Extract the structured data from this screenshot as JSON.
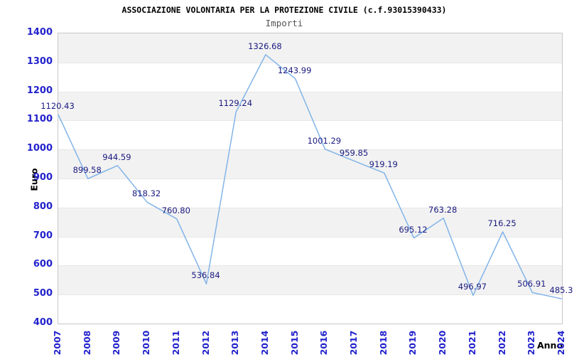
{
  "title": "ASSOCIAZIONE VOLONTARIA PER LA PROTEZIONE CIVILE (c.f.93015390433)",
  "subtitle": "Importi",
  "chart_data": {
    "type": "line",
    "title": "ASSOCIAZIONE VOLONTARIA PER LA PROTEZIONE CIVILE (c.f.93015390433)",
    "subtitle": "Importi",
    "xlabel": "Anno",
    "ylabel": "Euro",
    "categories": [
      "2007",
      "2008",
      "2009",
      "2010",
      "2011",
      "2012",
      "2013",
      "2014",
      "2015",
      "2016",
      "2017",
      "2018",
      "2019",
      "2020",
      "2021",
      "2022",
      "2023",
      "2024"
    ],
    "values": [
      1120.43,
      899.58,
      944.59,
      818.32,
      760.8,
      536.84,
      1129.24,
      1326.68,
      1243.99,
      1001.29,
      959.85,
      919.19,
      695.12,
      763.28,
      496.97,
      716.25,
      506.91,
      485.3
    ],
    "point_labels": [
      "1120.43",
      "899.58",
      "944.59",
      "818.32",
      "760.80",
      "536.84",
      "1129.24",
      "1326.68",
      "1243.99",
      "1001.29",
      "959.85",
      "919.19",
      "695.12",
      "763.28",
      "496.97",
      "716.25",
      "506.91",
      "485.3"
    ],
    "ylim": [
      400,
      1400
    ],
    "yticks": [
      400,
      500,
      600,
      700,
      800,
      900,
      1000,
      1100,
      1200,
      1300,
      1400
    ],
    "grid": "alternating horizontal bands",
    "legend": "none",
    "colors": {
      "line": "#82b4e8",
      "tick_label": "#2222cc",
      "point_label": "#1a1a80",
      "band": "#f2f2f2",
      "plot_border": "#c8c8c8",
      "title": "#000000",
      "subtitle": "#555555"
    }
  }
}
